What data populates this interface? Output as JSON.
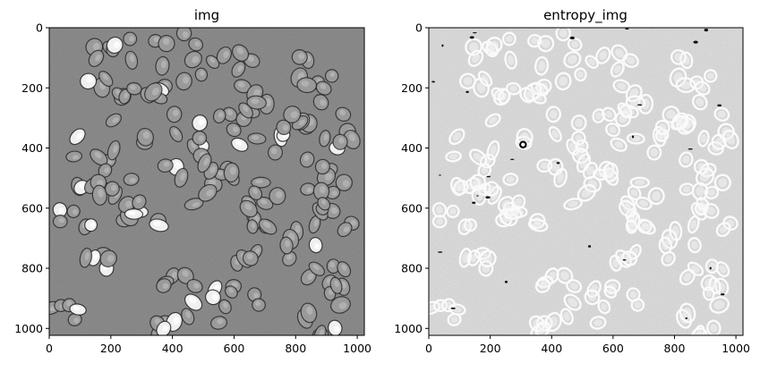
{
  "figure": {
    "panels": [
      {
        "title": "img"
      },
      {
        "title": "entropy_img"
      }
    ]
  },
  "chart_data": [
    {
      "type": "heatmap",
      "title": "img",
      "description_colors": {
        "background": "#7c7c7c",
        "cell_dark": "#222222",
        "cell_bright": "#f2f2f2"
      },
      "xlim": [
        0,
        1023
      ],
      "ylim": [
        1023,
        0
      ],
      "xticks": [
        0,
        200,
        400,
        600,
        800,
        1000
      ],
      "yticks": [
        0,
        200,
        400,
        600,
        800,
        1000
      ],
      "xtick_labels": [
        "0",
        "200",
        "400",
        "600",
        "800",
        "1000"
      ],
      "ytick_labels": [
        "0",
        "200",
        "400",
        "600",
        "800",
        "1000"
      ]
    },
    {
      "type": "heatmap",
      "title": "entropy_img",
      "description_colors": {
        "background": "#e6e6e6",
        "cell_ring": "#fafafa",
        "dark_spot": "#111111"
      },
      "xlim": [
        0,
        1023
      ],
      "ylim": [
        1023,
        0
      ],
      "xticks": [
        0,
        200,
        400,
        600,
        800,
        1000
      ],
      "yticks": [
        0,
        200,
        400,
        600,
        800,
        1000
      ],
      "xtick_labels": [
        "0",
        "200",
        "400",
        "600",
        "800",
        "1000"
      ],
      "ytick_labels": [
        "0",
        "200",
        "400",
        "600",
        "800",
        "1000"
      ]
    }
  ]
}
